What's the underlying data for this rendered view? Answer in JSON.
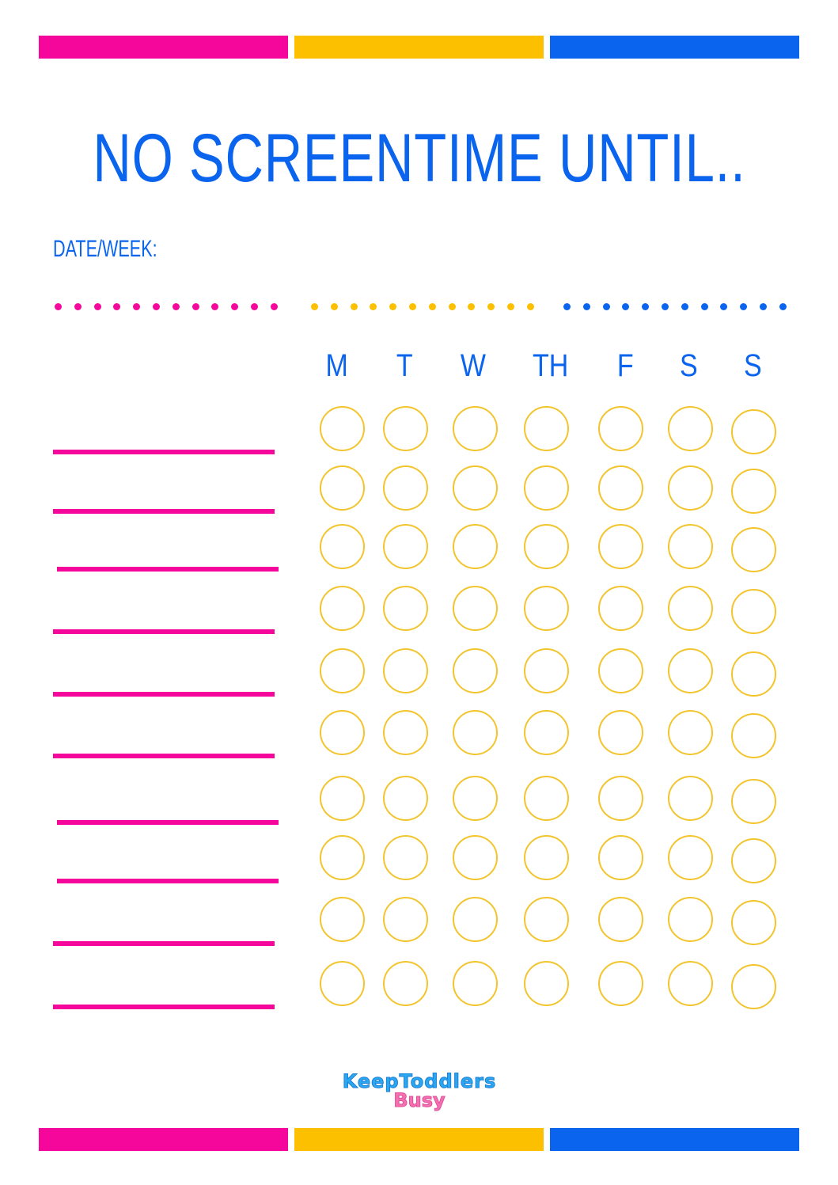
{
  "colors": {
    "pink": "#f5079b",
    "yellow": "#fcc000",
    "blue": "#0a64ee",
    "circle": "#f2c52e"
  },
  "title": "NO SCREENTIME UNTIL..",
  "date_label": "DATE/WEEK:",
  "days": [
    "M",
    "T",
    "W",
    "TH",
    "F",
    "S",
    "S"
  ],
  "logo": {
    "line1": "KeepToddlers",
    "line2": "Busy"
  }
}
